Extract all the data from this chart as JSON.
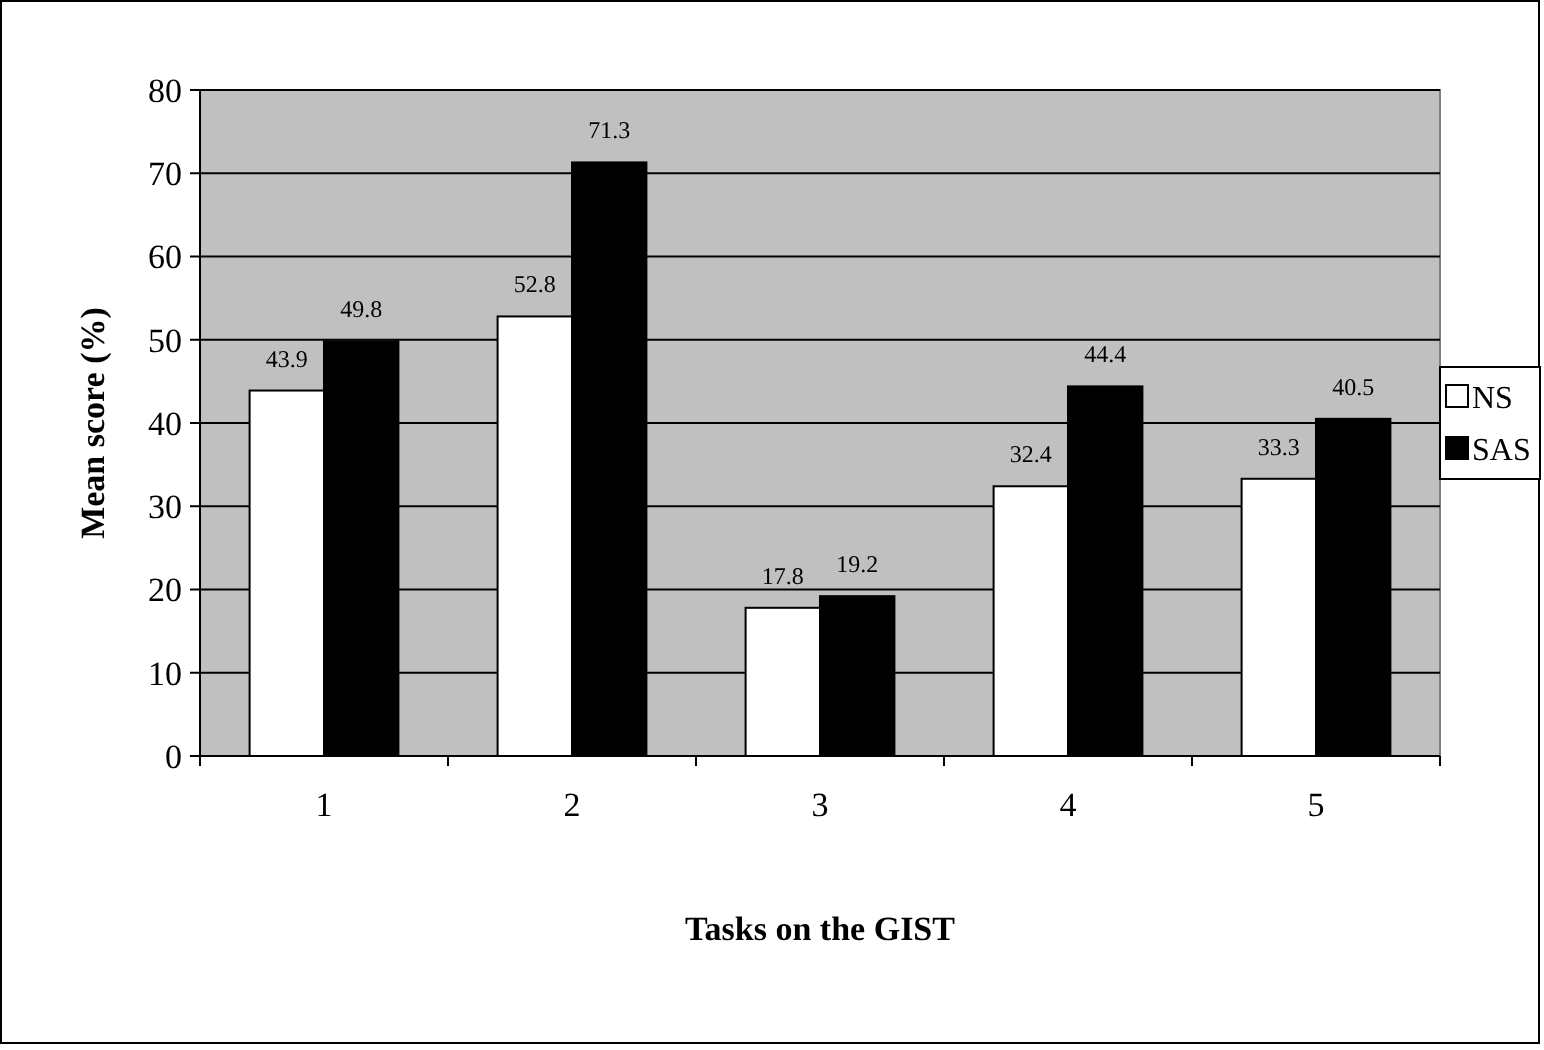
{
  "chart_data": {
    "type": "bar",
    "xlabel": "Tasks on the GIST",
    "ylabel": "Mean score (%)",
    "categories": [
      "1",
      "2",
      "3",
      "4",
      "5"
    ],
    "series": [
      {
        "name": "NS",
        "color": "#ffffff",
        "values": [
          43.9,
          52.8,
          17.8,
          32.4,
          33.3
        ]
      },
      {
        "name": "SAS",
        "color": "#000000",
        "values": [
          49.8,
          71.3,
          19.2,
          44.4,
          40.5
        ]
      }
    ],
    "ylim": [
      0,
      80
    ],
    "yticks": [
      0,
      10,
      20,
      30,
      40,
      50,
      60,
      70,
      80
    ],
    "grid": "y",
    "legend": "right",
    "data_labels": true
  }
}
